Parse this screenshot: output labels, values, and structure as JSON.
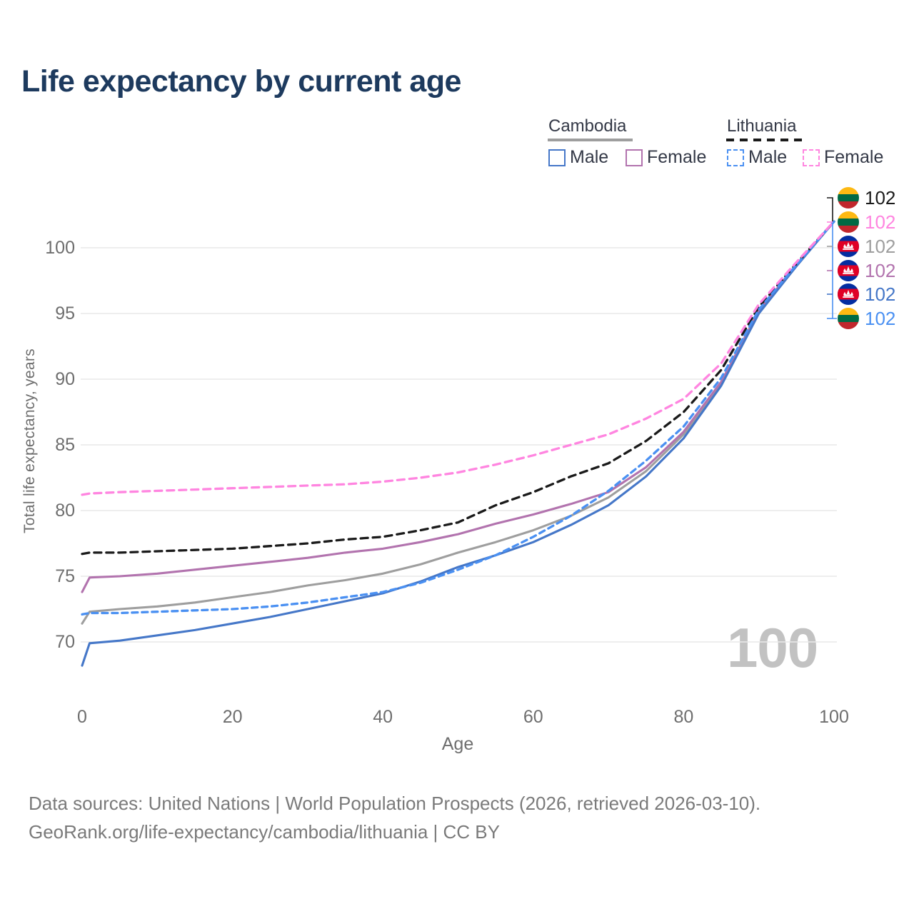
{
  "title": "Life expectancy by current age",
  "legend": {
    "groups": [
      {
        "label": "Cambodia",
        "line_style": "solid",
        "line_color": "#9e9e9e",
        "items": [
          {
            "label": "Male",
            "swatch_color": "#4577c8",
            "swatch_style": "solid"
          },
          {
            "label": "Female",
            "swatch_color": "#b273ae",
            "swatch_style": "solid"
          }
        ]
      },
      {
        "label": "Lithuania",
        "line_style": "dashed",
        "line_color": "#1a1a1a",
        "items": [
          {
            "label": "Male",
            "swatch_color": "#4a90f2",
            "swatch_style": "dashed"
          },
          {
            "label": "Female",
            "swatch_color": "#ff85e0",
            "swatch_style": "dashed"
          }
        ]
      }
    ]
  },
  "watermark": "100",
  "footer": {
    "line1": "Data sources: United Nations | World Population Prospects (2026, retrieved 2026-03-10).",
    "line2": "GeoRank.org/life-expectancy/cambodia/lithuania | CC BY"
  },
  "chart_data": {
    "type": "line",
    "title": "Life expectancy by current age",
    "xlabel": "Age",
    "ylabel": "Total life expectancy, years",
    "x_ticks": [
      0,
      20,
      40,
      60,
      80,
      100
    ],
    "y_ticks": [
      70,
      75,
      80,
      85,
      90,
      95,
      100
    ],
    "xlim": [
      0,
      100
    ],
    "ylim": [
      67.5,
      103
    ],
    "grid": "horizontal",
    "legend_position": "top-right",
    "x": [
      0,
      1,
      5,
      10,
      15,
      20,
      25,
      30,
      35,
      40,
      45,
      50,
      55,
      60,
      65,
      70,
      75,
      80,
      85,
      90,
      95,
      100
    ],
    "series": [
      {
        "name": "Cambodia Male",
        "country": "cambodia",
        "sex": "male",
        "color": "#4577c8",
        "dash": "solid",
        "end_label": "102",
        "values": [
          68.2,
          69.9,
          70.1,
          70.5,
          70.9,
          71.4,
          71.9,
          72.5,
          73.1,
          73.7,
          74.6,
          75.7,
          76.6,
          77.6,
          78.9,
          80.4,
          82.6,
          85.5,
          89.5,
          95.0,
          98.6,
          102
        ]
      },
      {
        "name": "Cambodia Female",
        "country": "cambodia",
        "sex": "female",
        "color": "#b273ae",
        "dash": "solid",
        "end_label": "102",
        "values": [
          73.8,
          74.9,
          75.0,
          75.2,
          75.5,
          75.8,
          76.1,
          76.4,
          76.8,
          77.1,
          77.6,
          78.2,
          79.0,
          79.7,
          80.5,
          81.4,
          83.3,
          86.0,
          89.8,
          95.2,
          98.7,
          102
        ]
      },
      {
        "name": "Cambodia Both sexes",
        "country": "cambodia",
        "sex": "both",
        "color": "#9e9e9e",
        "dash": "solid",
        "end_label": "102",
        "values": [
          71.4,
          72.3,
          72.5,
          72.7,
          73.0,
          73.4,
          73.8,
          74.3,
          74.7,
          75.2,
          75.9,
          76.8,
          77.6,
          78.5,
          79.6,
          81.0,
          83.0,
          85.8,
          89.6,
          95.1,
          98.6,
          102
        ]
      },
      {
        "name": "Lithuania Male",
        "country": "lithuania",
        "sex": "male",
        "color": "#4a90f2",
        "dash": "dashed",
        "end_label": "102",
        "values": [
          72.1,
          72.2,
          72.2,
          72.3,
          72.4,
          72.5,
          72.7,
          73.0,
          73.4,
          73.8,
          74.5,
          75.5,
          76.6,
          78.0,
          79.6,
          81.5,
          83.8,
          86.4,
          90.1,
          95.3,
          98.7,
          102
        ]
      },
      {
        "name": "Lithuania Female",
        "country": "lithuania",
        "sex": "female",
        "color": "#ff85e0",
        "dash": "dashed",
        "end_label": "102",
        "values": [
          81.2,
          81.3,
          81.4,
          81.5,
          81.6,
          81.7,
          81.8,
          81.9,
          82.0,
          82.2,
          82.5,
          82.9,
          83.5,
          84.2,
          85.0,
          85.8,
          87.0,
          88.5,
          91.2,
          95.7,
          98.9,
          102
        ]
      },
      {
        "name": "Lithuania Both sexes",
        "country": "lithuania",
        "sex": "both",
        "color": "#1a1a1a",
        "dash": "dashed",
        "end_label": "102",
        "values": [
          76.7,
          76.8,
          76.8,
          76.9,
          77.0,
          77.1,
          77.3,
          77.5,
          77.8,
          78.0,
          78.5,
          79.1,
          80.4,
          81.4,
          82.6,
          83.6,
          85.3,
          87.5,
          90.7,
          95.5,
          98.8,
          102
        ]
      }
    ],
    "end_label_rows": [
      {
        "country": "lithuania",
        "series": "Lithuania Both sexes",
        "value": "102",
        "color": "#1a1a1a"
      },
      {
        "country": "lithuania",
        "series": "Lithuania Female",
        "value": "102",
        "color": "#ff85e0"
      },
      {
        "country": "cambodia",
        "series": "Cambodia Both sexes",
        "value": "102",
        "color": "#9e9e9e"
      },
      {
        "country": "cambodia",
        "series": "Cambodia Female",
        "value": "102",
        "color": "#b273ae"
      },
      {
        "country": "cambodia",
        "series": "Cambodia Male",
        "value": "102",
        "color": "#4577c8"
      },
      {
        "country": "lithuania",
        "series": "Lithuania Male",
        "value": "102",
        "color": "#4a90f2"
      }
    ]
  }
}
